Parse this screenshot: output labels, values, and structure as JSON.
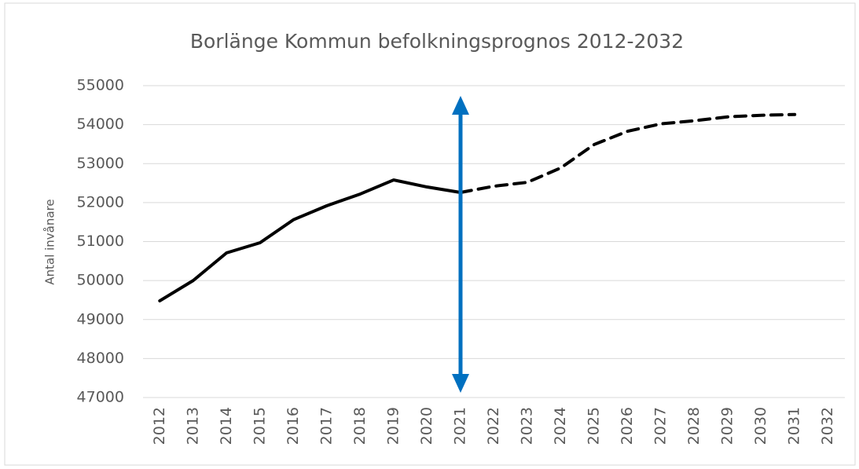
{
  "chart_data": {
    "type": "line",
    "title": "Borlänge Kommun befolkningsprognos 2012-2032",
    "y_label": "Antal invånare",
    "categories": [
      "2012",
      "2013",
      "2014",
      "2015",
      "2016",
      "2017",
      "2018",
      "2019",
      "2020",
      "2021",
      "2022",
      "2023",
      "2024",
      "2025",
      "2026",
      "2027",
      "2028",
      "2029",
      "2030",
      "2031",
      "2032"
    ],
    "series": [
      {
        "color": "#000000",
        "dashed": false,
        "values": [
          49480,
          50000,
          50710,
          50970,
          51560,
          51920,
          52220,
          52580,
          52400,
          52260,
          null,
          null,
          null,
          null,
          null,
          null,
          null,
          null,
          null,
          null,
          null
        ]
      },
      {
        "color": "#000000",
        "dashed": true,
        "values": [
          null,
          null,
          null,
          null,
          null,
          null,
          null,
          null,
          null,
          52260,
          52420,
          52520,
          52890,
          53490,
          53830,
          54020,
          54100,
          54200,
          54240,
          54260,
          null
        ]
      }
    ],
    "ylim": [
      47000,
      55000
    ],
    "yticks": [
      47000,
      48000,
      49000,
      50000,
      51000,
      52000,
      53000,
      54000,
      55000
    ],
    "grid": true
  }
}
